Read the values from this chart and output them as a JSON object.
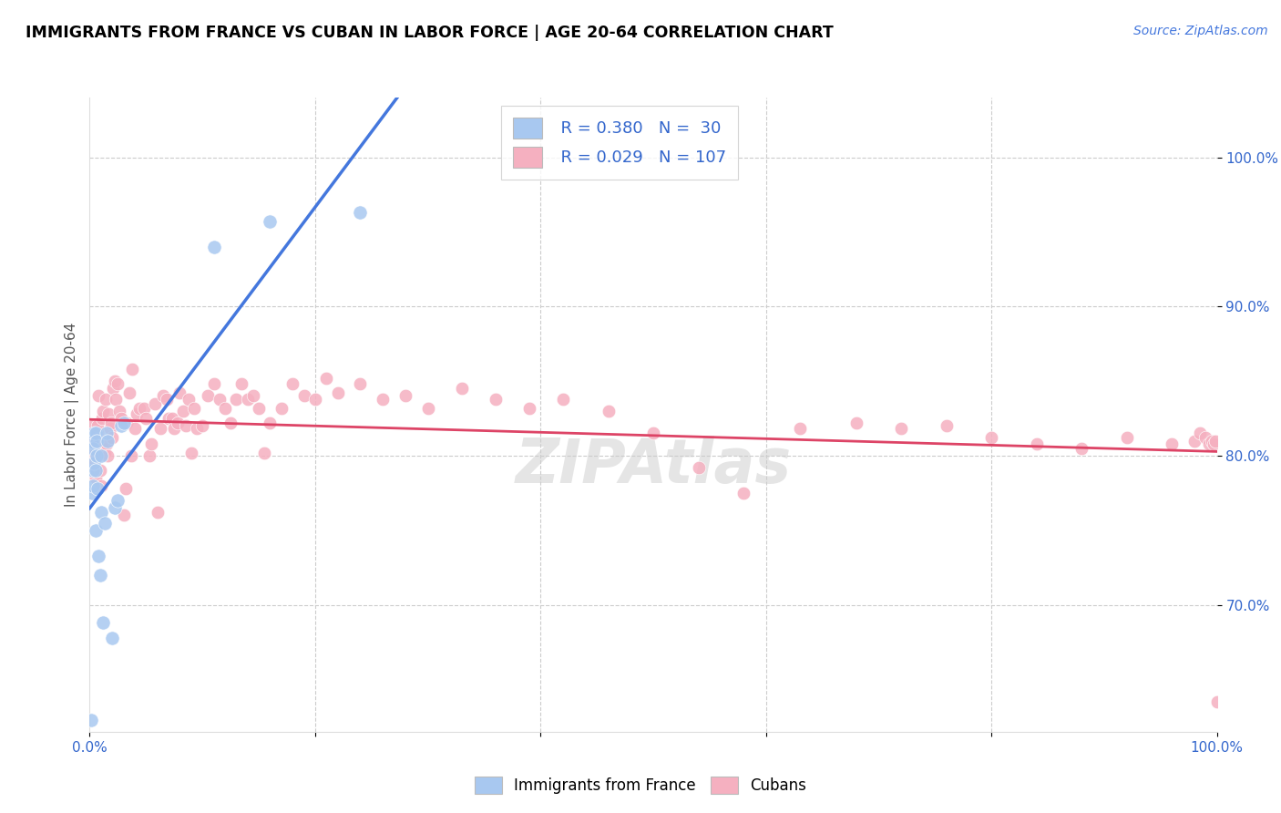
{
  "title": "IMMIGRANTS FROM FRANCE VS CUBAN IN LABOR FORCE | AGE 20-64 CORRELATION CHART",
  "source": "Source: ZipAtlas.com",
  "ylabel": "In Labor Force | Age 20-64",
  "xlim": [
    0,
    1.0
  ],
  "ylim": [
    0.615,
    1.04
  ],
  "xtick_positions": [
    0.0,
    0.2,
    0.4,
    0.6,
    0.8,
    1.0
  ],
  "xticklabels": [
    "0.0%",
    "",
    "",
    "",
    "",
    "100.0%"
  ],
  "ytick_positions": [
    0.7,
    0.8,
    0.9,
    1.0
  ],
  "ytick_labels": [
    "70.0%",
    "80.0%",
    "90.0%",
    "100.0%"
  ],
  "legend_france_r": "0.380",
  "legend_france_n": "30",
  "legend_cuban_r": "0.029",
  "legend_cuban_n": "107",
  "france_color": "#a8c8f0",
  "cuban_color": "#f5b0c0",
  "france_line_color": "#4477dd",
  "cuban_line_color": "#dd4466",
  "france_x": [
    0.001,
    0.002,
    0.002,
    0.003,
    0.003,
    0.003,
    0.004,
    0.004,
    0.005,
    0.005,
    0.005,
    0.006,
    0.006,
    0.007,
    0.008,
    0.009,
    0.01,
    0.01,
    0.012,
    0.013,
    0.015,
    0.016,
    0.02,
    0.022,
    0.025,
    0.028,
    0.03,
    0.11,
    0.16,
    0.24
  ],
  "france_y": [
    0.623,
    0.775,
    0.81,
    0.78,
    0.79,
    0.805,
    0.795,
    0.815,
    0.75,
    0.79,
    0.815,
    0.8,
    0.81,
    0.778,
    0.733,
    0.72,
    0.762,
    0.8,
    0.688,
    0.755,
    0.815,
    0.81,
    0.678,
    0.765,
    0.77,
    0.82,
    0.822,
    0.94,
    0.957,
    0.963
  ],
  "cuban_x": [
    0.001,
    0.002,
    0.003,
    0.003,
    0.004,
    0.005,
    0.005,
    0.006,
    0.007,
    0.007,
    0.008,
    0.009,
    0.01,
    0.011,
    0.011,
    0.012,
    0.013,
    0.014,
    0.015,
    0.016,
    0.017,
    0.018,
    0.019,
    0.02,
    0.021,
    0.022,
    0.023,
    0.025,
    0.026,
    0.028,
    0.03,
    0.032,
    0.033,
    0.035,
    0.037,
    0.038,
    0.04,
    0.042,
    0.044,
    0.048,
    0.05,
    0.053,
    0.055,
    0.058,
    0.06,
    0.063,
    0.065,
    0.068,
    0.07,
    0.073,
    0.075,
    0.078,
    0.08,
    0.083,
    0.085,
    0.088,
    0.09,
    0.093,
    0.095,
    0.1,
    0.105,
    0.11,
    0.115,
    0.12,
    0.125,
    0.13,
    0.135,
    0.14,
    0.145,
    0.15,
    0.155,
    0.16,
    0.17,
    0.18,
    0.19,
    0.2,
    0.21,
    0.22,
    0.24,
    0.26,
    0.28,
    0.3,
    0.33,
    0.36,
    0.39,
    0.42,
    0.46,
    0.5,
    0.54,
    0.58,
    0.63,
    0.68,
    0.72,
    0.76,
    0.8,
    0.84,
    0.88,
    0.92,
    0.96,
    0.98,
    0.985,
    0.99,
    0.993,
    0.995,
    0.997,
    0.999,
    1.0
  ],
  "cuban_y": [
    0.8,
    0.795,
    0.82,
    0.81,
    0.8,
    0.8,
    0.785,
    0.79,
    0.815,
    0.82,
    0.84,
    0.79,
    0.78,
    0.825,
    0.805,
    0.83,
    0.802,
    0.838,
    0.808,
    0.8,
    0.828,
    0.818,
    0.822,
    0.812,
    0.845,
    0.85,
    0.838,
    0.848,
    0.83,
    0.825,
    0.76,
    0.778,
    0.822,
    0.842,
    0.8,
    0.858,
    0.818,
    0.828,
    0.832,
    0.832,
    0.825,
    0.8,
    0.808,
    0.835,
    0.762,
    0.818,
    0.84,
    0.838,
    0.825,
    0.825,
    0.818,
    0.822,
    0.842,
    0.83,
    0.82,
    0.838,
    0.802,
    0.832,
    0.818,
    0.82,
    0.84,
    0.848,
    0.838,
    0.832,
    0.822,
    0.838,
    0.848,
    0.838,
    0.84,
    0.832,
    0.802,
    0.822,
    0.832,
    0.848,
    0.84,
    0.838,
    0.852,
    0.842,
    0.848,
    0.838,
    0.84,
    0.832,
    0.845,
    0.838,
    0.832,
    0.838,
    0.83,
    0.815,
    0.792,
    0.775,
    0.818,
    0.822,
    0.818,
    0.82,
    0.812,
    0.808,
    0.805,
    0.812,
    0.808,
    0.81,
    0.815,
    0.812,
    0.808,
    0.81,
    0.808,
    0.81,
    0.635
  ]
}
